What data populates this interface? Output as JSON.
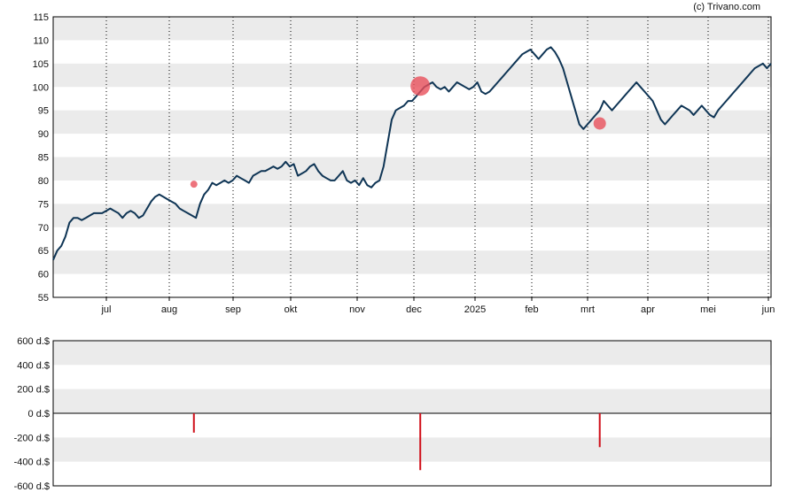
{
  "copyright": "(c) Trivano.com",
  "colors": {
    "price_line": "#0f3555",
    "band": "#ebebeb",
    "marker": "#e8505b",
    "trade_bar": "#d0101a",
    "axis": "#000000"
  },
  "chart_data": [
    {
      "type": "line",
      "y_ticks": [
        "55",
        "60",
        "65",
        "70",
        "75",
        "80",
        "85",
        "90",
        "95",
        "100",
        "105",
        "110",
        "115"
      ],
      "ylim": [
        55,
        115
      ],
      "x_ticks": [
        "jul",
        "aug",
        "sep",
        "okt",
        "nov",
        "dec",
        "2025",
        "feb",
        "mrt",
        "apr",
        "mei",
        "jun"
      ],
      "grid": "vertical dotted at month starts, alternating horizontal bands",
      "series": [
        {
          "values": [
            [
              0,
              63
            ],
            [
              2,
              65
            ],
            [
              4,
              66
            ],
            [
              6,
              68
            ],
            [
              8,
              71
            ],
            [
              10,
              72
            ],
            [
              12,
              72
            ],
            [
              14,
              71.5
            ],
            [
              16,
              72
            ],
            [
              18,
              72.5
            ],
            [
              20,
              73
            ],
            [
              22,
              73
            ],
            [
              24,
              73
            ],
            [
              26,
              73.5
            ],
            [
              28,
              74
            ],
            [
              30,
              73.5
            ],
            [
              32,
              73
            ],
            [
              34,
              72
            ],
            [
              36,
              73
            ],
            [
              38,
              73.5
            ],
            [
              40,
              73
            ],
            [
              42,
              72
            ],
            [
              44,
              72.5
            ],
            [
              46,
              74
            ],
            [
              48,
              75.5
            ],
            [
              50,
              76.5
            ],
            [
              52,
              77
            ],
            [
              54,
              76.5
            ],
            [
              56,
              76
            ],
            [
              58,
              75.5
            ],
            [
              60,
              75
            ],
            [
              62,
              74
            ],
            [
              64,
              73.5
            ],
            [
              66,
              73
            ],
            [
              68,
              72.5
            ],
            [
              70,
              72
            ],
            [
              72,
              75
            ],
            [
              74,
              77
            ],
            [
              76,
              78
            ],
            [
              78,
              79.5
            ],
            [
              80,
              79
            ],
            [
              82,
              79.5
            ],
            [
              84,
              80
            ],
            [
              86,
              79.5
            ],
            [
              88,
              80
            ],
            [
              90,
              81
            ],
            [
              92,
              80.5
            ],
            [
              94,
              80
            ],
            [
              96,
              79.5
            ],
            [
              98,
              81
            ],
            [
              100,
              81.5
            ],
            [
              102,
              82
            ],
            [
              104,
              82
            ],
            [
              106,
              82.5
            ],
            [
              108,
              83
            ],
            [
              110,
              82.5
            ],
            [
              112,
              83
            ],
            [
              114,
              84
            ],
            [
              116,
              83
            ],
            [
              118,
              83.5
            ],
            [
              120,
              81
            ],
            [
              122,
              81.5
            ],
            [
              124,
              82
            ],
            [
              126,
              83
            ],
            [
              128,
              83.5
            ],
            [
              130,
              82
            ],
            [
              132,
              81
            ],
            [
              134,
              80.5
            ],
            [
              136,
              80
            ],
            [
              138,
              80
            ],
            [
              140,
              81
            ],
            [
              142,
              82
            ],
            [
              144,
              80
            ],
            [
              146,
              79.5
            ],
            [
              148,
              80
            ],
            [
              150,
              79
            ],
            [
              152,
              80.5
            ],
            [
              154,
              79
            ],
            [
              156,
              78.5
            ],
            [
              158,
              79.5
            ],
            [
              160,
              80
            ],
            [
              162,
              83
            ],
            [
              164,
              88
            ],
            [
              166,
              93
            ],
            [
              168,
              95
            ],
            [
              170,
              95.5
            ],
            [
              172,
              96
            ],
            [
              174,
              97
            ],
            [
              176,
              97
            ],
            [
              178,
              98
            ],
            [
              180,
              99
            ],
            [
              182,
              100
            ],
            [
              184,
              100.5
            ],
            [
              186,
              101
            ],
            [
              188,
              100
            ],
            [
              190,
              99.5
            ],
            [
              192,
              100
            ],
            [
              194,
              99
            ],
            [
              196,
              100
            ],
            [
              198,
              101
            ],
            [
              200,
              100.5
            ],
            [
              202,
              100
            ],
            [
              204,
              99.5
            ],
            [
              206,
              100
            ],
            [
              208,
              101
            ],
            [
              210,
              99
            ],
            [
              212,
              98.5
            ],
            [
              214,
              99
            ],
            [
              216,
              100
            ],
            [
              218,
              101
            ],
            [
              220,
              102
            ],
            [
              222,
              103
            ],
            [
              224,
              104
            ],
            [
              226,
              105
            ],
            [
              228,
              106
            ],
            [
              230,
              107
            ],
            [
              232,
              107.5
            ],
            [
              234,
              108
            ],
            [
              236,
              107
            ],
            [
              238,
              106
            ],
            [
              240,
              107
            ],
            [
              242,
              108
            ],
            [
              244,
              108.5
            ],
            [
              246,
              107.5
            ],
            [
              248,
              106
            ],
            [
              250,
              104
            ],
            [
              252,
              101
            ],
            [
              254,
              98
            ],
            [
              256,
              95
            ],
            [
              258,
              92
            ],
            [
              260,
              91
            ],
            [
              262,
              92
            ],
            [
              264,
              93
            ],
            [
              266,
              94
            ],
            [
              268,
              95
            ],
            [
              270,
              97
            ],
            [
              272,
              96
            ],
            [
              274,
              95
            ],
            [
              276,
              96
            ],
            [
              278,
              97
            ],
            [
              280,
              98
            ],
            [
              282,
              99
            ],
            [
              284,
              100
            ],
            [
              286,
              101
            ],
            [
              288,
              100
            ],
            [
              290,
              99
            ],
            [
              292,
              98
            ],
            [
              294,
              97
            ],
            [
              296,
              95
            ],
            [
              298,
              93
            ],
            [
              300,
              92
            ],
            [
              302,
              93
            ],
            [
              304,
              94
            ],
            [
              306,
              95
            ],
            [
              308,
              96
            ],
            [
              310,
              95.5
            ],
            [
              312,
              95
            ],
            [
              314,
              94
            ],
            [
              316,
              95
            ],
            [
              318,
              96
            ],
            [
              320,
              95
            ],
            [
              322,
              94
            ],
            [
              324,
              93.5
            ],
            [
              326,
              95
            ],
            [
              328,
              96
            ],
            [
              330,
              97
            ],
            [
              332,
              98
            ],
            [
              334,
              99
            ],
            [
              336,
              100
            ],
            [
              338,
              101
            ],
            [
              340,
              102
            ],
            [
              342,
              103
            ],
            [
              344,
              104
            ],
            [
              346,
              104.5
            ],
            [
              348,
              105
            ],
            [
              350,
              104
            ],
            [
              352,
              105
            ]
          ]
        }
      ],
      "markers": [
        {
          "t": 69,
          "y": 79.2,
          "size": "small"
        },
        {
          "t": 180,
          "y": 100.2,
          "size": "large"
        },
        {
          "t": 268,
          "y": 92.2,
          "size": "medium"
        }
      ]
    },
    {
      "type": "bar",
      "y_ticks": [
        "600 d.$",
        "400 d.$",
        "200 d.$",
        "0 d.$",
        "-200 d.$",
        "-400 d.$",
        "-600 d.$"
      ],
      "ylim": [
        -600,
        600
      ],
      "bars": [
        {
          "t": 69,
          "value": -160
        },
        {
          "t": 180,
          "value": -470
        },
        {
          "t": 268,
          "value": -280
        }
      ]
    }
  ]
}
